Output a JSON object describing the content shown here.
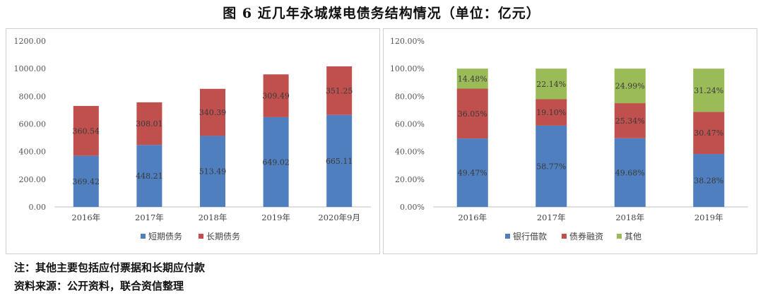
{
  "figure_title": "图 6   近几年永城煤电债务结构情况（单位：亿元）",
  "notes": {
    "line1": "注：其他主要包括应付票据和长期应付款",
    "line2": "资料来源：公开资料，联合资信整理"
  },
  "colors": {
    "blue": "#4f7fbe",
    "red": "#c0504d",
    "green": "#9bbb59",
    "axis": "#bfbfbf",
    "text": "#555555"
  },
  "chart_data": [
    {
      "type": "bar",
      "stacked": true,
      "title": "",
      "xlabel": "",
      "ylabel": "",
      "ylim": [
        0,
        1200
      ],
      "yticks": [
        "0.00",
        "200.00",
        "400.00",
        "600.00",
        "800.00",
        "1000.00",
        "1200.00"
      ],
      "categories": [
        "2016年",
        "2017年",
        "2018年",
        "2019年",
        "2020年9月"
      ],
      "series": [
        {
          "name": "短期债务",
          "color": "blue",
          "values": [
            369.42,
            448.21,
            513.49,
            649.02,
            665.11
          ],
          "labels": [
            "369.42",
            "448.21",
            "513.49",
            "649.02",
            "665.11"
          ]
        },
        {
          "name": "长期债务",
          "color": "red",
          "values": [
            360.54,
            308.01,
            340.39,
            309.49,
            351.25
          ],
          "labels": [
            "360.54",
            "308.01",
            "340.39",
            "309.49",
            "351.25"
          ]
        }
      ],
      "legend": "bottom"
    },
    {
      "type": "bar",
      "stacked": true,
      "percent": true,
      "title": "",
      "xlabel": "",
      "ylabel": "",
      "ylim": [
        0,
        120
      ],
      "yticks": [
        "0.00%",
        "20.00%",
        "40.00%",
        "60.00%",
        "80.00%",
        "100.00%",
        "120.00%"
      ],
      "categories": [
        "2016年",
        "2017年",
        "2018年",
        "2019年"
      ],
      "series": [
        {
          "name": "银行借款",
          "color": "blue",
          "values": [
            49.47,
            58.77,
            49.68,
            38.28
          ],
          "labels": [
            "49.47%",
            "58.77%",
            "49.68%",
            "38.28%"
          ]
        },
        {
          "name": "债券融资",
          "color": "red",
          "values": [
            36.05,
            19.1,
            25.34,
            30.47
          ],
          "labels": [
            "36.05%",
            "19.10%",
            "25.34%",
            "30.47%"
          ]
        },
        {
          "name": "其他",
          "color": "green",
          "values": [
            14.48,
            22.14,
            24.99,
            31.24
          ],
          "labels": [
            "14.48%",
            "22.14%",
            "24.99%",
            "31.24%"
          ]
        }
      ],
      "legend": "bottom"
    }
  ]
}
